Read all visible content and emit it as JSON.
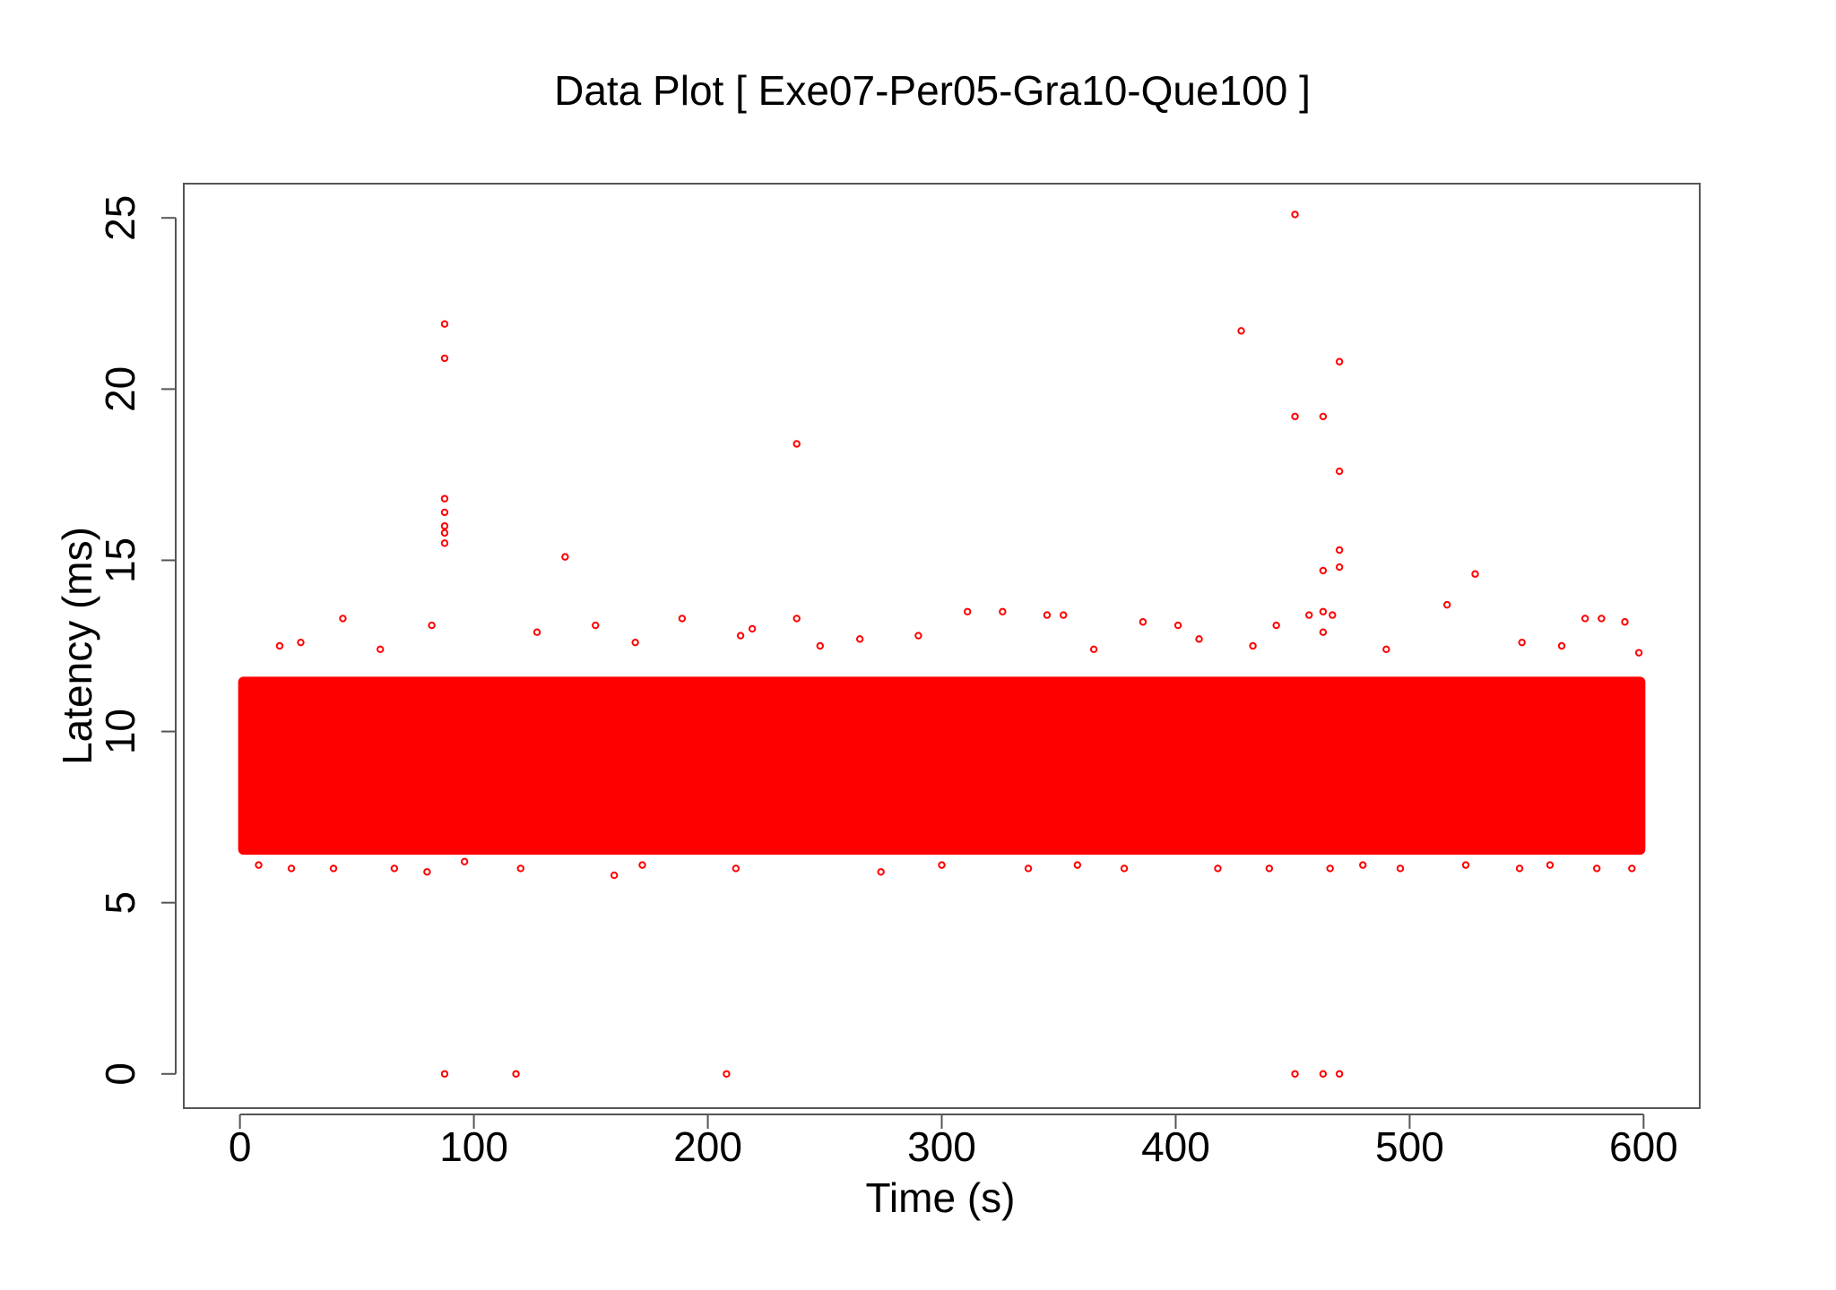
{
  "chart_data": {
    "type": "scatter",
    "title": "Data Plot [ Exe07-Per05-Gra10-Que100 ]",
    "xlabel": "Time (s)",
    "ylabel": "Latency (ms)",
    "xlim": [
      -24,
      624
    ],
    "ylim": [
      -1,
      26
    ],
    "xticks": [
      0,
      100,
      200,
      300,
      400,
      500,
      600
    ],
    "yticks": [
      0,
      5,
      10,
      15,
      20,
      25
    ],
    "grid": false,
    "legend": "none",
    "marker": "open-circle",
    "color": "#ff0000",
    "dense_band": {
      "x_range": [
        0,
        600
      ],
      "y_range": [
        6.4,
        11.6
      ],
      "description_of_mass": "dense band of points"
    },
    "series": [
      {
        "values": [
          [
            87.5,
            21.9
          ],
          [
            87.5,
            20.9
          ],
          [
            87.5,
            16.8
          ],
          [
            87.5,
            16.4
          ],
          [
            87.5,
            16.0
          ],
          [
            87.5,
            15.8
          ],
          [
            87.5,
            15.5
          ],
          [
            139,
            15.1
          ],
          [
            238,
            18.4
          ],
          [
            238,
            13.3
          ],
          [
            428,
            21.7
          ],
          [
            451,
            25.1
          ],
          [
            451,
            19.2
          ],
          [
            463,
            19.2
          ],
          [
            463,
            14.7
          ],
          [
            463,
            13.5
          ],
          [
            463,
            12.9
          ],
          [
            470,
            20.8
          ],
          [
            470,
            17.6
          ],
          [
            470,
            15.3
          ],
          [
            470,
            14.8
          ],
          [
            516,
            13.7
          ],
          [
            528,
            14.6
          ],
          [
            311,
            13.5
          ],
          [
            326,
            13.5
          ],
          [
            345,
            13.4
          ],
          [
            352,
            13.4
          ],
          [
            44,
            13.3
          ],
          [
            82,
            13.1
          ],
          [
            152,
            13.1
          ],
          [
            189,
            13.3
          ],
          [
            386,
            13.2
          ],
          [
            401,
            13.1
          ],
          [
            443,
            13.1
          ],
          [
            457,
            13.4
          ],
          [
            467,
            13.4
          ],
          [
            575,
            13.3
          ],
          [
            582,
            13.3
          ],
          [
            592,
            13.2
          ],
          [
            127,
            12.9
          ],
          [
            169,
            12.6
          ],
          [
            219,
            13.0
          ],
          [
            214,
            12.8
          ],
          [
            265,
            12.7
          ],
          [
            290,
            12.8
          ],
          [
            17,
            12.5
          ],
          [
            26,
            12.6
          ],
          [
            60,
            12.4
          ],
          [
            248,
            12.5
          ],
          [
            365,
            12.4
          ],
          [
            410,
            12.7
          ],
          [
            433,
            12.5
          ],
          [
            490,
            12.4
          ],
          [
            548,
            12.6
          ],
          [
            565,
            12.5
          ],
          [
            598,
            12.3
          ],
          [
            87.5,
            0
          ],
          [
            118,
            0
          ],
          [
            208,
            0
          ],
          [
            451,
            0
          ],
          [
            463,
            0
          ],
          [
            470,
            0
          ],
          [
            8,
            6.1
          ],
          [
            22,
            6.0
          ],
          [
            40,
            6.0
          ],
          [
            66,
            6.0
          ],
          [
            80,
            5.9
          ],
          [
            96,
            6.2
          ],
          [
            120,
            6.0
          ],
          [
            160,
            5.8
          ],
          [
            172,
            6.1
          ],
          [
            212,
            6.0
          ],
          [
            274,
            5.9
          ],
          [
            300,
            6.1
          ],
          [
            337,
            6.0
          ],
          [
            358,
            6.1
          ],
          [
            378,
            6.0
          ],
          [
            418,
            6.0
          ],
          [
            440,
            6.0
          ],
          [
            466,
            6.0
          ],
          [
            480,
            6.1
          ],
          [
            496,
            6.0
          ],
          [
            524,
            6.1
          ],
          [
            547,
            6.0
          ],
          [
            560,
            6.1
          ],
          [
            580,
            6.0
          ],
          [
            595,
            6.0
          ]
        ]
      }
    ]
  }
}
